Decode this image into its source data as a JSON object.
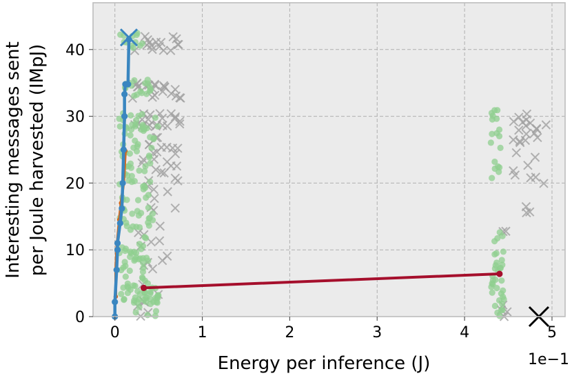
{
  "chart_data": {
    "type": "scatter",
    "xlabel": "Energy per inference (J)",
    "ylabel_lines": [
      "Interesting messages sent",
      "per Joule harvested (IMpJ)"
    ],
    "x_exponent": "1e−1",
    "xlim": [
      -0.25,
      5.15
    ],
    "ylim": [
      0,
      47
    ],
    "x_ticks": [
      0,
      1,
      2,
      3,
      4,
      5
    ],
    "y_ticks": [
      0,
      10,
      20,
      30,
      40
    ],
    "grid": true,
    "colors": {
      "plot_bg": "#ebebeb",
      "grid": "#b0b0b0",
      "green": "#8fcf8f",
      "gray": "#a0a0a0",
      "blue": "#3a86c0",
      "orange": "#d2691e",
      "red": "#a50f2c",
      "black": "#000000"
    },
    "green_bands": [
      {
        "x": [
          0.05,
          0.42
        ],
        "y": [
          40,
          42.5
        ],
        "n": 12
      },
      {
        "x": [
          0.05,
          0.45
        ],
        "y": [
          33,
          35.5
        ],
        "n": 18
      },
      {
        "x": [
          0.05,
          0.5
        ],
        "y": [
          28,
          30.5
        ],
        "n": 22
      },
      {
        "x": [
          0.05,
          0.45
        ],
        "y": [
          14,
          28
        ],
        "n": 60
      },
      {
        "x": [
          0.05,
          0.4
        ],
        "y": [
          5,
          14
        ],
        "n": 40
      },
      {
        "x": [
          0.05,
          0.5
        ],
        "y": [
          0,
          5
        ],
        "n": 45
      },
      {
        "x": [
          4.3,
          4.45
        ],
        "y": [
          25,
          31
        ],
        "n": 12
      },
      {
        "x": [
          4.3,
          4.4
        ],
        "y": [
          19,
          25
        ],
        "n": 6
      },
      {
        "x": [
          4.3,
          4.45
        ],
        "y": [
          0,
          13
        ],
        "n": 35
      }
    ],
    "gray_bands": [
      {
        "x": [
          0.2,
          0.75
        ],
        "y": [
          39.5,
          42
        ],
        "n": 16
      },
      {
        "x": [
          0.2,
          0.8
        ],
        "y": [
          32.5,
          35
        ],
        "n": 22
      },
      {
        "x": [
          0.2,
          0.75
        ],
        "y": [
          28,
          30.5
        ],
        "n": 20
      },
      {
        "x": [
          0.3,
          0.75
        ],
        "y": [
          14,
          27
        ],
        "n": 30
      },
      {
        "x": [
          0.25,
          0.6
        ],
        "y": [
          0,
          14
        ],
        "n": 18
      },
      {
        "x": [
          4.55,
          4.95
        ],
        "y": [
          26,
          31
        ],
        "n": 18
      },
      {
        "x": [
          4.45,
          4.95
        ],
        "y": [
          19,
          25
        ],
        "n": 8
      },
      {
        "x": [
          4.7,
          4.75
        ],
        "y": [
          15,
          16.5
        ],
        "n": 3
      },
      {
        "x": [
          4.4,
          4.5
        ],
        "y": [
          12,
          13
        ],
        "n": 2
      },
      {
        "x": [
          4.4,
          4.6
        ],
        "y": [
          0,
          2
        ],
        "n": 4
      }
    ],
    "series": [
      {
        "key": "blue",
        "points": [
          [
            0.0,
            0.0
          ],
          [
            0.0,
            2.2
          ],
          [
            0.02,
            7.0
          ],
          [
            0.03,
            10.0
          ],
          [
            0.03,
            11.0
          ],
          [
            0.06,
            14.0
          ],
          [
            0.08,
            16.2
          ],
          [
            0.09,
            20.0
          ],
          [
            0.1,
            25.0
          ],
          [
            0.11,
            30.0
          ],
          [
            0.11,
            33.3
          ],
          [
            0.12,
            34.8
          ],
          [
            0.15,
            34.8
          ],
          [
            0.16,
            41.5
          ]
        ]
      },
      {
        "key": "orange",
        "points": [
          [
            0.01,
            3.0
          ],
          [
            0.01,
            7.0
          ],
          [
            0.02,
            10.0
          ],
          [
            0.05,
            14.5
          ],
          [
            0.07,
            17.0
          ],
          [
            0.1,
            20.0
          ],
          [
            0.12,
            24.8
          ]
        ]
      },
      {
        "key": "red",
        "points": [
          [
            0.33,
            4.3
          ],
          [
            4.4,
            6.4
          ]
        ]
      }
    ],
    "markers": [
      {
        "key": "blue",
        "x": 0.16,
        "y": 41.8,
        "shape": "x"
      },
      {
        "key": "black",
        "x": 4.85,
        "y": 0.0,
        "shape": "x"
      }
    ]
  }
}
